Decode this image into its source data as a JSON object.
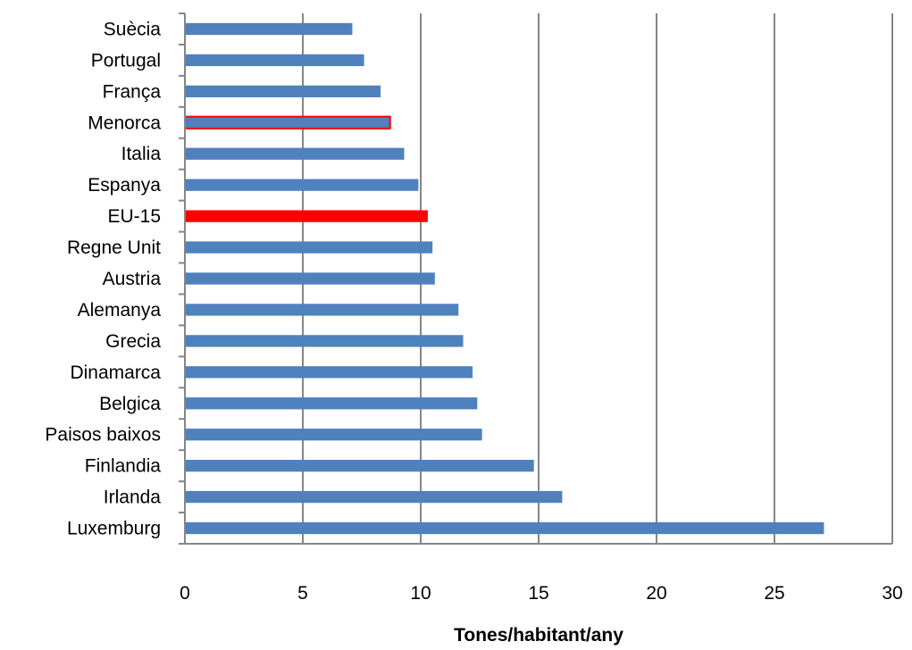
{
  "chart_data": {
    "type": "bar",
    "orientation": "horizontal",
    "categories": [
      "Suècia",
      "Portugal",
      "França",
      "Menorca",
      "Italia",
      "Espanya",
      "EU-15",
      "Regne Unit",
      "Austria",
      "Alemanya",
      "Grecia",
      "Dinamarca",
      "Belgica",
      "Paisos baixos",
      "Finlandia",
      "Irlanda",
      "Luxemburg"
    ],
    "values": [
      7.1,
      7.6,
      8.3,
      8.7,
      9.3,
      9.9,
      10.3,
      10.5,
      10.6,
      11.6,
      11.8,
      12.2,
      12.4,
      12.6,
      14.8,
      16.0,
      27.1
    ],
    "colors": [
      "#4f81bd",
      "#4f81bd",
      "#4f81bd",
      "#4f81bd",
      "#4f81bd",
      "#4f81bd",
      "#ff0000",
      "#4f81bd",
      "#4f81bd",
      "#4f81bd",
      "#4f81bd",
      "#4f81bd",
      "#4f81bd",
      "#4f81bd",
      "#4f81bd",
      "#4f81bd",
      "#4f81bd"
    ],
    "outline_colors": [
      "",
      "",
      "",
      "#ff0000",
      "",
      "",
      "",
      "",
      "",
      "",
      "",
      "",
      "",
      "",
      "",
      "",
      ""
    ],
    "xlabel": "Tones/habitant/any",
    "ylabel": "",
    "xlim": [
      0,
      30
    ],
    "xticks": [
      "0",
      "5",
      "10",
      "15",
      "20",
      "25",
      "30"
    ],
    "grid": "vertical",
    "legend": "none"
  }
}
